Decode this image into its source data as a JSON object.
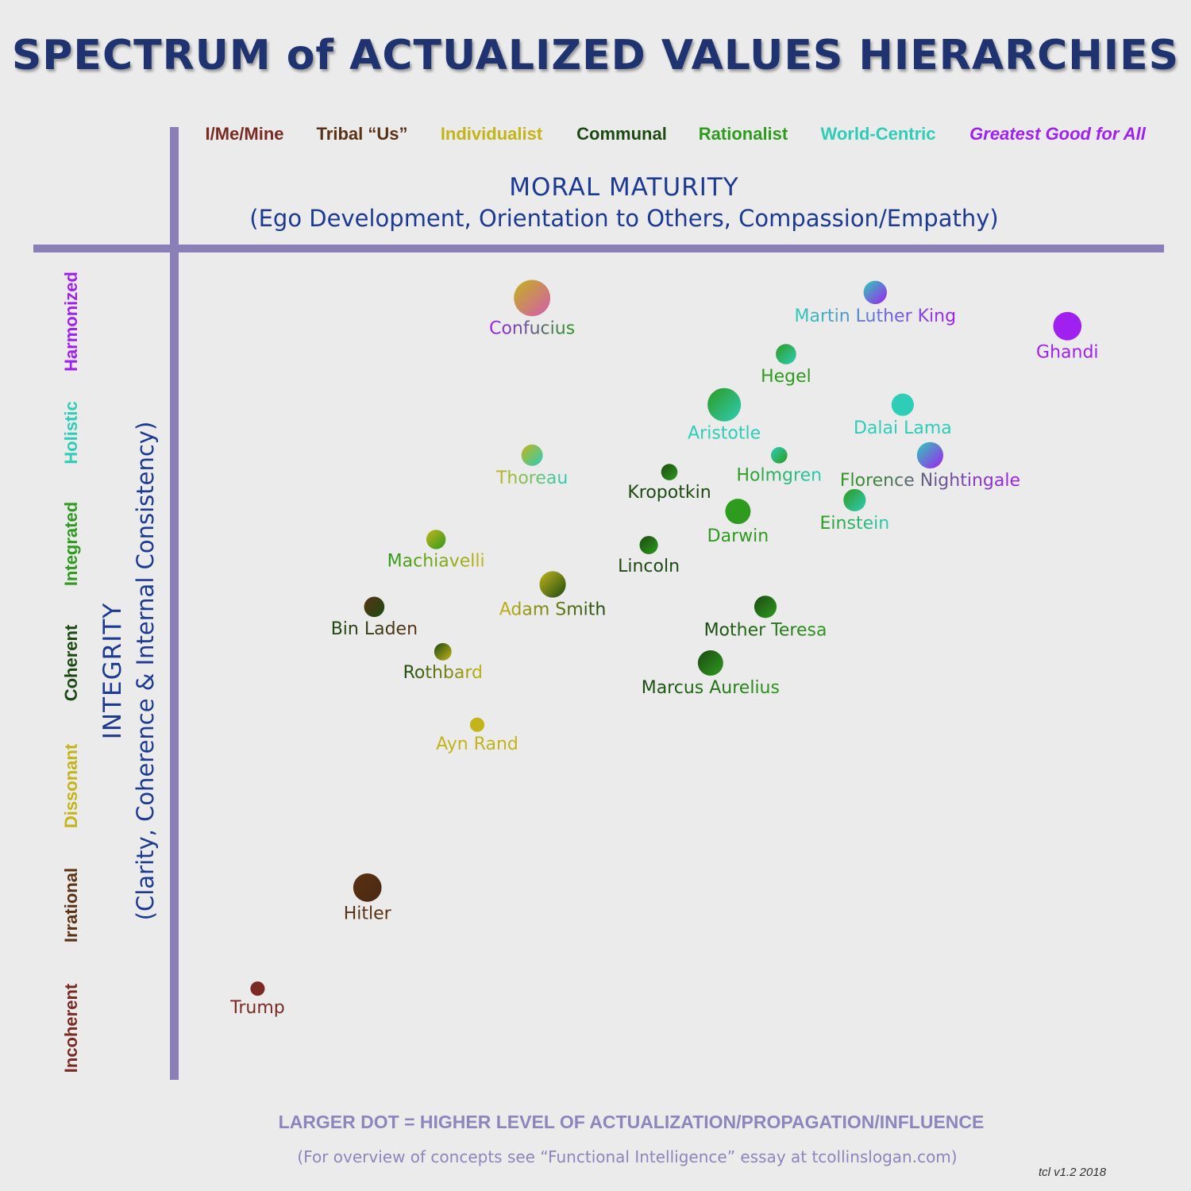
{
  "title": "SPECTRUM of ACTUALIZED VALUES HIERARCHIES",
  "chart_data": {
    "type": "scatter",
    "title": "SPECTRUM of ACTUALIZED VALUES HIERARCHIES",
    "x_axis": {
      "title": "MORAL MATURITY",
      "subtitle": "(Ego Development, Orientation to Others, Compassion/Empathy)",
      "categories": [
        {
          "label": "I/Me/Mine",
          "color": "#7a2a22",
          "italic": false
        },
        {
          "label": "Tribal “Us”",
          "color": "#5a3214",
          "italic": false
        },
        {
          "label": "Individualist",
          "color": "#c3b41a",
          "italic": false
        },
        {
          "label": "Communal",
          "color": "#1c4a12",
          "italic": false
        },
        {
          "label": "Rationalist",
          "color": "#2e9a1e",
          "italic": false
        },
        {
          "label": "World-Centric",
          "color": "#2ecdb8",
          "italic": false
        },
        {
          "label": "Greatest Good for All",
          "color": "#a020f0",
          "italic": true
        }
      ],
      "xlim": [
        0,
        7
      ]
    },
    "y_axis": {
      "title": "INTEGRITY",
      "subtitle": "(Clarity, Coherence & Internal Consistency)",
      "categories": [
        {
          "label": "Incoherent",
          "color": "#7a2a22"
        },
        {
          "label": "Irrational",
          "color": "#5a3214"
        },
        {
          "label": "Dissonant",
          "color": "#c3b41a"
        },
        {
          "label": "Coherent",
          "color": "#1c4a12"
        },
        {
          "label": "Integrated",
          "color": "#2e9a1e"
        },
        {
          "label": "Holistic",
          "color": "#2ecdb8"
        },
        {
          "label": "Harmonized",
          "color": "#a020f0"
        }
      ],
      "ylim": [
        0,
        7
      ]
    },
    "points": [
      {
        "name": "Confucius",
        "x": 2.5,
        "y": 6.75,
        "size": 3.0,
        "colors": [
          "#c3b41a",
          "#d45ab0"
        ],
        "label_colors": [
          "#a020f0",
          "#2e9a1e"
        ]
      },
      {
        "name": "Martin Luther King",
        "x": 5.0,
        "y": 6.8,
        "size": 1.7,
        "colors": [
          "#2ecdb8",
          "#a020f0"
        ],
        "label_colors": [
          "#2ecdb8",
          "#a020f0"
        ]
      },
      {
        "name": "Ghandi",
        "x": 6.4,
        "y": 6.5,
        "size": 2.2,
        "colors": [
          "#a020f0",
          "#a020f0"
        ],
        "label_colors": [
          "#a020f0",
          "#a020f0"
        ]
      },
      {
        "name": "Hegel",
        "x": 4.35,
        "y": 6.25,
        "size": 1.4,
        "colors": [
          "#2e9a1e",
          "#2ecdb8"
        ],
        "label_colors": [
          "#2e9a1e",
          "#2e9a1e"
        ]
      },
      {
        "name": "Aristotle",
        "x": 3.9,
        "y": 5.8,
        "size": 2.7,
        "colors": [
          "#2e9a1e",
          "#2ecdb8"
        ],
        "label_colors": [
          "#2ecdb8",
          "#2ecdb8"
        ]
      },
      {
        "name": "Dalai Lama",
        "x": 5.2,
        "y": 5.8,
        "size": 1.6,
        "colors": [
          "#2ecdb8",
          "#2ecdb8"
        ],
        "label_colors": [
          "#2ecdb8",
          "#2ecdb8"
        ]
      },
      {
        "name": "Thoreau",
        "x": 2.5,
        "y": 5.35,
        "size": 1.5,
        "colors": [
          "#c3b41a",
          "#2ecdb8"
        ],
        "label_colors": [
          "#c3b41a",
          "#2ecdb8"
        ]
      },
      {
        "name": "Holmgren",
        "x": 4.3,
        "y": 5.35,
        "size": 1.0,
        "colors": [
          "#2ecdb8",
          "#2e9a1e"
        ],
        "label_colors": [
          "#2e9a1e",
          "#2ecdb8"
        ]
      },
      {
        "name": "Florence Nightingale",
        "x": 5.4,
        "y": 5.35,
        "size": 2.0,
        "colors": [
          "#2ecdb8",
          "#a020f0"
        ],
        "label_colors": [
          "#2e9a1e",
          "#a020f0"
        ]
      },
      {
        "name": "Kropotkin",
        "x": 3.5,
        "y": 5.2,
        "size": 1.0,
        "colors": [
          "#1c4a12",
          "#2e9a1e"
        ],
        "label_colors": [
          "#1c4a12",
          "#1c4a12"
        ]
      },
      {
        "name": "Einstein",
        "x": 4.85,
        "y": 4.95,
        "size": 1.6,
        "colors": [
          "#2e9a1e",
          "#2ecdb8"
        ],
        "label_colors": [
          "#2e9a1e",
          "#2ecdb8"
        ]
      },
      {
        "name": "Darwin",
        "x": 4.0,
        "y": 4.85,
        "size": 1.9,
        "colors": [
          "#2e9a1e",
          "#2e9a1e"
        ],
        "label_colors": [
          "#2e9a1e",
          "#2e9a1e"
        ]
      },
      {
        "name": "Machiavelli",
        "x": 1.8,
        "y": 4.6,
        "size": 1.3,
        "colors": [
          "#c3b41a",
          "#2e9a1e"
        ],
        "label_colors": [
          "#2e9a1e",
          "#c3b41a"
        ]
      },
      {
        "name": "Lincoln",
        "x": 3.35,
        "y": 4.55,
        "size": 1.2,
        "colors": [
          "#1c4a12",
          "#2e9a1e"
        ],
        "label_colors": [
          "#1c4a12",
          "#1c4a12"
        ]
      },
      {
        "name": "Adam Smith",
        "x": 2.65,
        "y": 4.2,
        "size": 2.0,
        "colors": [
          "#c3b41a",
          "#1c4a12"
        ],
        "label_colors": [
          "#c3b41a",
          "#1c4a12"
        ]
      },
      {
        "name": "Mother Teresa",
        "x": 4.2,
        "y": 4.0,
        "size": 1.6,
        "colors": [
          "#1c4a12",
          "#2e9a1e"
        ],
        "label_colors": [
          "#1c4a12",
          "#2e9a1e"
        ]
      },
      {
        "name": "Bin Laden",
        "x": 1.35,
        "y": 4.0,
        "size": 1.4,
        "colors": [
          "#5a3214",
          "#1c4a12"
        ],
        "label_colors": [
          "#1c4a12",
          "#5a3214"
        ]
      },
      {
        "name": "Rothbard",
        "x": 1.85,
        "y": 3.6,
        "size": 1.1,
        "colors": [
          "#1c4a12",
          "#c3b41a"
        ],
        "label_colors": [
          "#1c4a12",
          "#c3b41a"
        ]
      },
      {
        "name": "Marcus Aurelius",
        "x": 3.8,
        "y": 3.5,
        "size": 1.9,
        "colors": [
          "#1c4a12",
          "#2e9a1e"
        ],
        "label_colors": [
          "#1c4a12",
          "#2e9a1e"
        ]
      },
      {
        "name": "Ayn Rand",
        "x": 2.1,
        "y": 2.95,
        "size": 0.8,
        "colors": [
          "#c3b41a",
          "#c3b41a"
        ],
        "label_colors": [
          "#c3b41a",
          "#c3b41a"
        ]
      },
      {
        "name": "Hitler",
        "x": 1.3,
        "y": 1.5,
        "size": 2.2,
        "colors": [
          "#5a3214",
          "#4a2810"
        ],
        "label_colors": [
          "#5a3214",
          "#5a3214"
        ]
      },
      {
        "name": "Trump",
        "x": 0.5,
        "y": 0.6,
        "size": 0.8,
        "colors": [
          "#7a2a22",
          "#7a2a22"
        ],
        "label_colors": [
          "#7a2a22",
          "#7a2a22"
        ]
      }
    ]
  },
  "footer": {
    "legend_note": "LARGER DOT = HIGHER LEVEL OF ACTUALIZATION/PROPAGATION/INFLUENCE",
    "reference": "(For overview of concepts see “Functional Intelligence” essay at tcollinslogan.com)",
    "version": "tcl v1.2 2018"
  }
}
